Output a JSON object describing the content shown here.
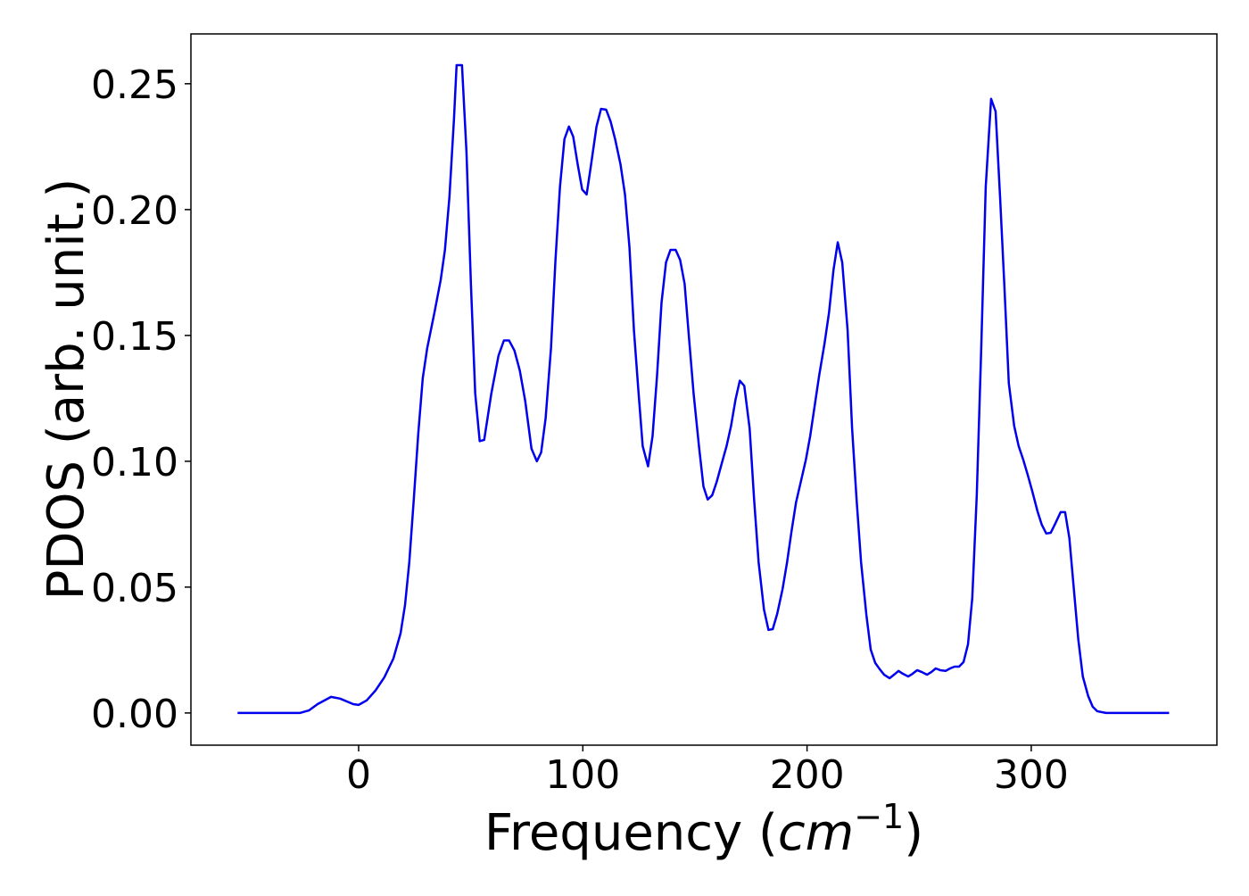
{
  "chart_data": {
    "type": "line",
    "ylabel": "PDOS (arb. unit.)",
    "xlabel_parts": [
      "Frequency (",
      "cm",
      "−1",
      ")"
    ],
    "xlim": [
      -74.8,
      382.8
    ],
    "ylim": [
      -0.0128,
      0.2698
    ],
    "xticks": [
      0,
      100,
      200,
      300
    ],
    "yticks": [
      {
        "value": 0,
        "label": "0.00"
      },
      {
        "value": 0.05,
        "label": "0.05"
      },
      {
        "value": 0.1,
        "label": "0.10"
      },
      {
        "value": 0.15,
        "label": "0.15"
      },
      {
        "value": 0.2,
        "label": "0.20"
      },
      {
        "value": 0.25,
        "label": "0.25"
      }
    ],
    "grid": false,
    "x": [
      -54,
      -26.2,
      -22.2,
      -18.3,
      -12.3,
      -8.3,
      -2.4,
      0,
      3.6,
      7.5,
      11.5,
      15.5,
      18.7,
      20.7,
      22.6,
      24.6,
      26.6,
      28.6,
      30.6,
      33.8,
      36.6,
      38.5,
      40.5,
      42.5,
      43.7,
      46.1,
      48.1,
      50.1,
      52.0,
      54.0,
      56.0,
      59.2,
      62.4,
      64.8,
      67.1,
      69.5,
      71.9,
      74.3,
      77.1,
      79.5,
      81.4,
      83.4,
      85.8,
      87.8,
      89.8,
      91.8,
      93.8,
      95.7,
      97.7,
      99.7,
      101.7,
      103.7,
      106.1,
      108.1,
      110.4,
      112.4,
      114.4,
      116.8,
      118.8,
      120.8,
      122.8,
      124.7,
      126.7,
      129.1,
      131.1,
      133.1,
      135.1,
      137.1,
      139.1,
      141.4,
      143.4,
      145.4,
      147.4,
      149.4,
      151.8,
      153.8,
      155.7,
      157.7,
      159.7,
      162.1,
      164.1,
      166.1,
      168.1,
      170.0,
      172.0,
      174.4,
      176.4,
      178.4,
      180.8,
      182.8,
      184.7,
      186.7,
      189.1,
      191.1,
      193.1,
      195.1,
      197.5,
      199.5,
      201.4,
      203.4,
      205.4,
      207.8,
      209.8,
      211.8,
      213.7,
      215.7,
      218.1,
      220.1,
      222.1,
      224.1,
      226.5,
      228.4,
      230.4,
      232.4,
      234.4,
      236.8,
      238.8,
      240.8,
      242.7,
      245.1,
      247.1,
      249.1,
      251.1,
      253.5,
      255.5,
      257.4,
      259.4,
      261.8,
      263.8,
      265.8,
      267.8,
      269.8,
      271.8,
      273.7,
      275.7,
      277.7,
      279.7,
      282.1,
      284.1,
      286.1,
      288.0,
      290.0,
      292.4,
      294.4,
      296.4,
      298.4,
      300.4,
      302.8,
      304.7,
      306.7,
      308.7,
      310.7,
      313.1,
      315.1,
      317.0,
      319.0,
      321.0,
      323.0,
      325.4,
      327.4,
      329.4,
      333.3,
      361.5
    ],
    "series": [
      {
        "name": "PDOS",
        "color": "#0000ee",
        "values": [
          0,
          0,
          0.001,
          0.0035,
          0.0064,
          0.0057,
          0.0035,
          0.0032,
          0.005,
          0.0089,
          0.0142,
          0.0216,
          0.0316,
          0.0429,
          0.0599,
          0.0848,
          0.111,
          0.133,
          0.145,
          0.159,
          0.172,
          0.184,
          0.205,
          0.2355,
          0.2574,
          0.2574,
          0.223,
          0.17,
          0.127,
          0.108,
          0.1085,
          0.127,
          0.142,
          0.148,
          0.148,
          0.144,
          0.136,
          0.124,
          0.105,
          0.1,
          0.1035,
          0.117,
          0.145,
          0.18,
          0.209,
          0.228,
          0.233,
          0.229,
          0.218,
          0.208,
          0.206,
          0.218,
          0.233,
          0.24,
          0.2397,
          0.235,
          0.228,
          0.218,
          0.206,
          0.185,
          0.152,
          0.129,
          0.106,
          0.098,
          0.11,
          0.134,
          0.163,
          0.179,
          0.184,
          0.184,
          0.18,
          0.1705,
          0.1486,
          0.127,
          0.106,
          0.09,
          0.0848,
          0.0865,
          0.0918,
          0.0996,
          0.106,
          0.114,
          0.1245,
          0.132,
          0.13,
          0.113,
          0.0848,
          0.0599,
          0.0411,
          0.033,
          0.0333,
          0.0394,
          0.0493,
          0.0599,
          0.0723,
          0.0837,
          0.0929,
          0.1007,
          0.11,
          0.122,
          0.134,
          0.1468,
          0.159,
          0.176,
          0.187,
          0.179,
          0.152,
          0.113,
          0.0848,
          0.0599,
          0.0387,
          0.0252,
          0.0199,
          0.0174,
          0.0152,
          0.0138,
          0.0152,
          0.0167,
          0.0156,
          0.0145,
          0.0156,
          0.017,
          0.0163,
          0.0152,
          0.0163,
          0.0177,
          0.017,
          0.0167,
          0.0177,
          0.0184,
          0.0184,
          0.0202,
          0.0273,
          0.0457,
          0.0865,
          0.145,
          0.209,
          0.244,
          0.239,
          0.205,
          0.17,
          0.131,
          0.114,
          0.106,
          0.1007,
          0.0947,
          0.0883,
          0.0801,
          0.0748,
          0.0713,
          0.0716,
          0.0752,
          0.0798,
          0.0798,
          0.0695,
          0.0493,
          0.0291,
          0.0145,
          0.0067,
          0.0025,
          0.0007,
          0,
          0
        ]
      }
    ]
  }
}
